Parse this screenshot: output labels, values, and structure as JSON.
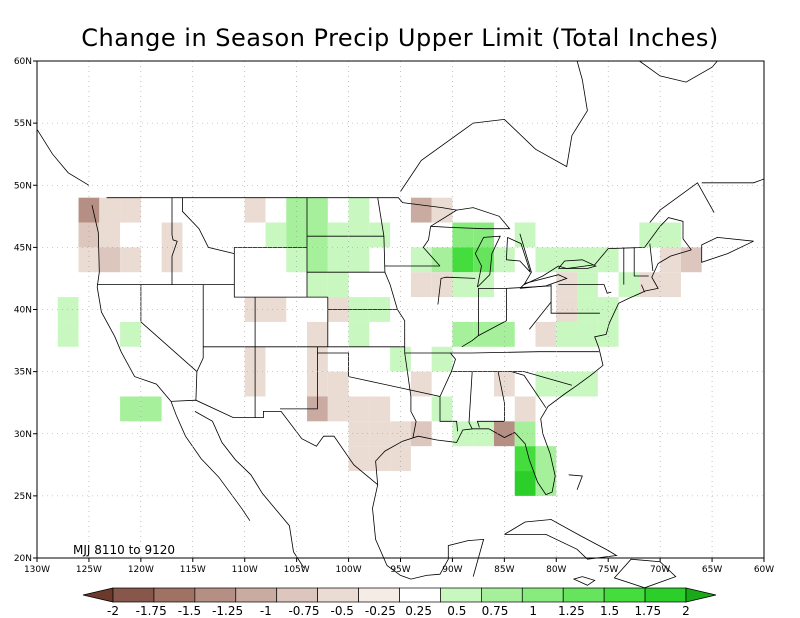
{
  "title": "Change in Season Precip Upper Limit (Total Inches)",
  "period_label": "MJJ 8110 to 9120",
  "axes": {
    "lon_ticks": [
      "130W",
      "125W",
      "120W",
      "115W",
      "110W",
      "105W",
      "100W",
      "95W",
      "90W",
      "85W",
      "80W",
      "75W",
      "70W",
      "65W",
      "60W"
    ],
    "lat_ticks": [
      "60N",
      "55N",
      "50N",
      "45N",
      "40N",
      "35N",
      "30N",
      "25N",
      "20N"
    ],
    "lon_range": [
      -130,
      -60
    ],
    "lat_range": [
      20,
      60
    ],
    "grid": true
  },
  "colorbar": {
    "labels": [
      "-2",
      "-1.75",
      "-1.5",
      "-1.25",
      "-1",
      "-0.75",
      "-0.5",
      "-0.25",
      "0.25",
      "0.5",
      "0.75",
      "1",
      "1.25",
      "1.5",
      "1.75",
      "2"
    ],
    "colors": [
      "#6b3a2b",
      "#86574a",
      "#9f7264",
      "#b58f83",
      "#c9aba1",
      "#dcc6bd",
      "#eadbd3",
      "#f6ece6",
      "#ffffff",
      "#c8f7c0",
      "#a6f09c",
      "#87eb7d",
      "#66e45d",
      "#45dd3e",
      "#2ccf29",
      "#1aa918"
    ]
  },
  "legend": {
    "label": "Change in Season Precip Upper Limit (Total Inches)"
  },
  "chart_data": {
    "type": "heatmap",
    "title": "Change in Season Precip Upper Limit (Total Inches)",
    "annotation": "MJJ 8110 to 9120",
    "cell_size_deg": 2,
    "cells": [
      {
        "lon": -125,
        "lat": 48,
        "v": -1.2
      },
      {
        "lon": -123,
        "lat": 48,
        "v": -0.3
      },
      {
        "lon": -121,
        "lat": 48,
        "v": -0.3
      },
      {
        "lon": -125,
        "lat": 46,
        "v": -0.6
      },
      {
        "lon": -123,
        "lat": 46,
        "v": -0.3
      },
      {
        "lon": -117,
        "lat": 46,
        "v": -0.3
      },
      {
        "lon": -125,
        "lat": 44,
        "v": -0.3
      },
      {
        "lon": -123,
        "lat": 44,
        "v": -0.6
      },
      {
        "lon": -121,
        "lat": 44,
        "v": -0.3
      },
      {
        "lon": -117,
        "lat": 44,
        "v": -0.3
      },
      {
        "lon": -109,
        "lat": 48,
        "v": -0.3
      },
      {
        "lon": -105,
        "lat": 48,
        "v": 0.5
      },
      {
        "lon": -103,
        "lat": 48,
        "v": 0.5
      },
      {
        "lon": -107,
        "lat": 46,
        "v": 0.3
      },
      {
        "lon": -105,
        "lat": 46,
        "v": 0.5
      },
      {
        "lon": -103,
        "lat": 46,
        "v": 0.5
      },
      {
        "lon": -99,
        "lat": 48,
        "v": 0.3
      },
      {
        "lon": -93,
        "lat": 48,
        "v": -0.9
      },
      {
        "lon": -91,
        "lat": 48,
        "v": -0.3
      },
      {
        "lon": -99,
        "lat": 46,
        "v": 0.3
      },
      {
        "lon": -97,
        "lat": 46,
        "v": 0.3
      },
      {
        "lon": -101,
        "lat": 46,
        "v": 0.3
      },
      {
        "lon": -105,
        "lat": 44,
        "v": 0.3
      },
      {
        "lon": -103,
        "lat": 44,
        "v": 0.5
      },
      {
        "lon": -101,
        "lat": 44,
        "v": 0.3
      },
      {
        "lon": -99,
        "lat": 44,
        "v": 0.3
      },
      {
        "lon": -103,
        "lat": 42,
        "v": 0.3
      },
      {
        "lon": -101,
        "lat": 42,
        "v": 0.3
      },
      {
        "lon": -93,
        "lat": 44,
        "v": 0.3
      },
      {
        "lon": -91,
        "lat": 44,
        "v": 0.5
      },
      {
        "lon": -89,
        "lat": 46,
        "v": 0.8
      },
      {
        "lon": -87,
        "lat": 46,
        "v": 0.8
      },
      {
        "lon": -89,
        "lat": 44,
        "v": 1.3
      },
      {
        "lon": -87,
        "lat": 44,
        "v": 1.0
      },
      {
        "lon": -85,
        "lat": 44,
        "v": 0.3
      },
      {
        "lon": -83,
        "lat": 46,
        "v": 0.3
      },
      {
        "lon": -81,
        "lat": 44,
        "v": 0.3
      },
      {
        "lon": -79,
        "lat": 44,
        "v": 0.3
      },
      {
        "lon": -77,
        "lat": 44,
        "v": 0.3
      },
      {
        "lon": -75,
        "lat": 44,
        "v": 0.3
      },
      {
        "lon": -71,
        "lat": 46,
        "v": 0.3
      },
      {
        "lon": -69,
        "lat": 46,
        "v": 0.3
      },
      {
        "lon": -67,
        "lat": 44,
        "v": -0.7
      },
      {
        "lon": -69,
        "lat": 44,
        "v": -0.3
      },
      {
        "lon": -71,
        "lat": 42,
        "v": -0.3
      },
      {
        "lon": -69,
        "lat": 42,
        "v": -0.4
      },
      {
        "lon": -73,
        "lat": 42,
        "v": 0.3
      },
      {
        "lon": -89,
        "lat": 42,
        "v": 0.3
      },
      {
        "lon": -87,
        "lat": 42,
        "v": 0.3
      },
      {
        "lon": -91,
        "lat": 42,
        "v": -0.3
      },
      {
        "lon": -93,
        "lat": 42,
        "v": -0.3
      },
      {
        "lon": -79,
        "lat": 42,
        "v": -0.3
      },
      {
        "lon": -77,
        "lat": 42,
        "v": 0.3
      },
      {
        "lon": -75,
        "lat": 40,
        "v": 0.3
      },
      {
        "lon": -77,
        "lat": 40,
        "v": 0.3
      },
      {
        "lon": -79,
        "lat": 40,
        "v": -0.3
      },
      {
        "lon": -81,
        "lat": 38,
        "v": -0.3
      },
      {
        "lon": -79,
        "lat": 38,
        "v": 0.3
      },
      {
        "lon": -77,
        "lat": 38,
        "v": 0.3
      },
      {
        "lon": -75,
        "lat": 38,
        "v": 0.3
      },
      {
        "lon": -87,
        "lat": 38,
        "v": 0.5
      },
      {
        "lon": -85,
        "lat": 38,
        "v": 0.5
      },
      {
        "lon": -89,
        "lat": 38,
        "v": 0.5
      },
      {
        "lon": -97,
        "lat": 40,
        "v": 0.3
      },
      {
        "lon": -99,
        "lat": 40,
        "v": 0.3
      },
      {
        "lon": -101,
        "lat": 40,
        "v": -0.3
      },
      {
        "lon": -99,
        "lat": 38,
        "v": 0.3
      },
      {
        "lon": -109,
        "lat": 40,
        "v": -0.3
      },
      {
        "lon": -107,
        "lat": 40,
        "v": -0.3
      },
      {
        "lon": -103,
        "lat": 38,
        "v": -0.3
      },
      {
        "lon": -103,
        "lat": 36,
        "v": -0.3
      },
      {
        "lon": -127,
        "lat": 40,
        "v": 0.3
      },
      {
        "lon": -127,
        "lat": 38,
        "v": 0.3
      },
      {
        "lon": -121,
        "lat": 38,
        "v": 0.3
      },
      {
        "lon": -109,
        "lat": 36,
        "v": -0.3
      },
      {
        "lon": -109,
        "lat": 34,
        "v": -0.3
      },
      {
        "lon": -103,
        "lat": 34,
        "v": -0.3
      },
      {
        "lon": -101,
        "lat": 34,
        "v": -0.4
      },
      {
        "lon": -103,
        "lat": 32,
        "v": -1.0
      },
      {
        "lon": -101,
        "lat": 32,
        "v": -0.4
      },
      {
        "lon": -99,
        "lat": 32,
        "v": -0.3
      },
      {
        "lon": -97,
        "lat": 32,
        "v": -0.3
      },
      {
        "lon": -95,
        "lat": 36,
        "v": 0.3
      },
      {
        "lon": -93,
        "lat": 34,
        "v": -0.3
      },
      {
        "lon": -91,
        "lat": 36,
        "v": 0.3
      },
      {
        "lon": -99,
        "lat": 30,
        "v": -0.3
      },
      {
        "lon": -97,
        "lat": 30,
        "v": -0.4
      },
      {
        "lon": -95,
        "lat": 30,
        "v": -0.3
      },
      {
        "lon": -93,
        "lat": 30,
        "v": -0.6
      },
      {
        "lon": -99,
        "lat": 28,
        "v": -0.4
      },
      {
        "lon": -97,
        "lat": 28,
        "v": -0.3
      },
      {
        "lon": -95,
        "lat": 28,
        "v": -0.3
      },
      {
        "lon": -91,
        "lat": 32,
        "v": 0.3
      },
      {
        "lon": -89,
        "lat": 30,
        "v": 0.3
      },
      {
        "lon": -87,
        "lat": 30,
        "v": 0.3
      },
      {
        "lon": -85,
        "lat": 30,
        "v": -1.2
      },
      {
        "lon": -83,
        "lat": 30,
        "v": 0.5
      },
      {
        "lon": -85,
        "lat": 34,
        "v": -0.3
      },
      {
        "lon": -83,
        "lat": 32,
        "v": -0.4
      },
      {
        "lon": -81,
        "lat": 34,
        "v": 0.3
      },
      {
        "lon": -79,
        "lat": 34,
        "v": 0.3
      },
      {
        "lon": -77,
        "lat": 34,
        "v": 0.3
      },
      {
        "lon": -83,
        "lat": 28,
        "v": 1.3
      },
      {
        "lon": -81,
        "lat": 28,
        "v": 0.5
      },
      {
        "lon": -83,
        "lat": 26,
        "v": 1.7
      },
      {
        "lon": -81,
        "lat": 26,
        "v": 0.5
      },
      {
        "lon": -121,
        "lat": 32,
        "v": 0.5
      },
      {
        "lon": -119,
        "lat": 32,
        "v": 0.5
      }
    ]
  }
}
